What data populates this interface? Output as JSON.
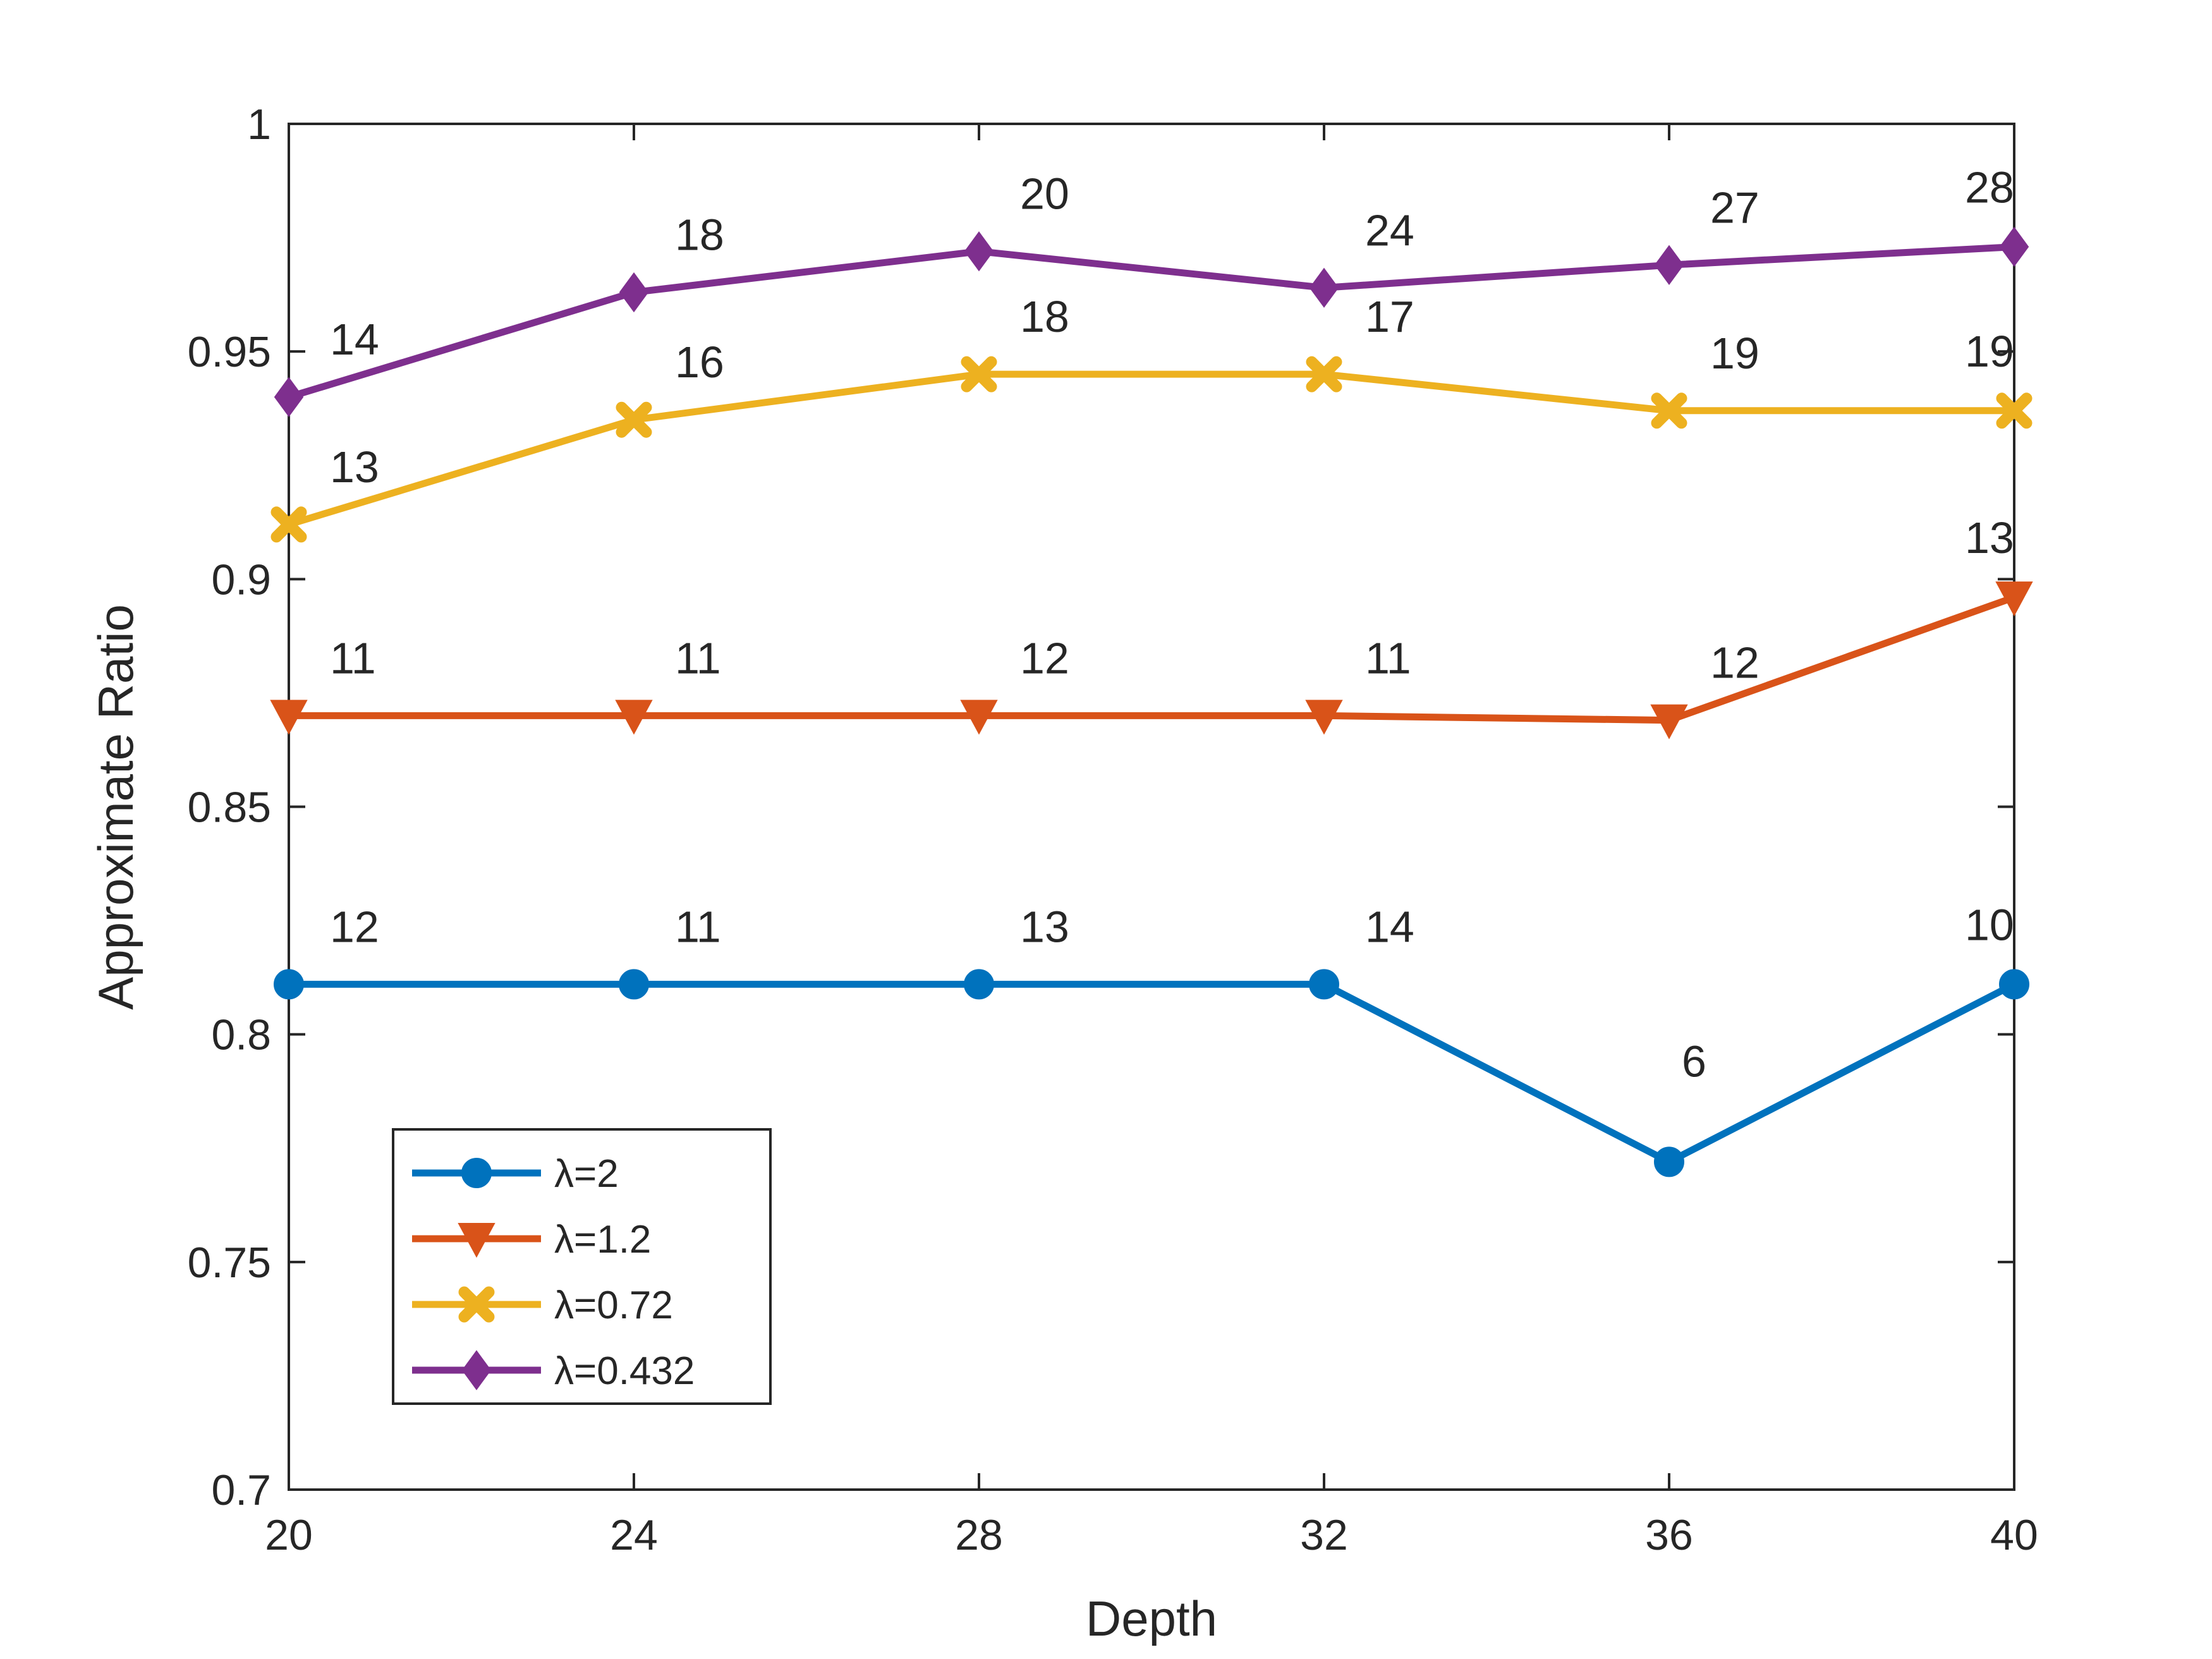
{
  "chart_data": {
    "type": "line",
    "title": "",
    "xlabel": "Depth",
    "ylabel": "Approximate Ratio",
    "x": [
      20,
      24,
      28,
      32,
      36,
      40
    ],
    "xlim": [
      20,
      40
    ],
    "ylim": [
      0.7,
      1.0
    ],
    "xticks": [
      "20",
      "24",
      "28",
      "32",
      "36",
      "40"
    ],
    "yticks": [
      "0.7",
      "0.75",
      "0.8",
      "0.85",
      "0.9",
      "0.95",
      "1"
    ],
    "grid": false,
    "legend_position": "bottom-left",
    "series": [
      {
        "name": "λ=2",
        "color": "#0072BD",
        "marker": "circle",
        "values": [
          0.811,
          0.811,
          0.811,
          0.811,
          0.772,
          0.811
        ],
        "labels": [
          "12",
          "11",
          "13",
          "14",
          "6",
          "10"
        ]
      },
      {
        "name": "λ=1.2",
        "color": "#D95319",
        "marker": "triangle-down",
        "values": [
          0.87,
          0.87,
          0.87,
          0.87,
          0.869,
          0.896
        ],
        "labels": [
          "11",
          "11",
          "12",
          "11",
          "12",
          "13"
        ]
      },
      {
        "name": "λ=0.72",
        "color": "#EDB120",
        "marker": "x",
        "values": [
          0.912,
          0.935,
          0.945,
          0.945,
          0.937,
          0.937
        ],
        "labels": [
          "13",
          "16",
          "18",
          "17",
          "19",
          "19"
        ]
      },
      {
        "name": "λ=0.432",
        "color": "#7E2F8E",
        "marker": "diamond",
        "values": [
          0.94,
          0.963,
          0.972,
          0.964,
          0.969,
          0.973
        ],
        "labels": [
          "14",
          "18",
          "20",
          "24",
          "27",
          "28"
        ]
      }
    ]
  }
}
